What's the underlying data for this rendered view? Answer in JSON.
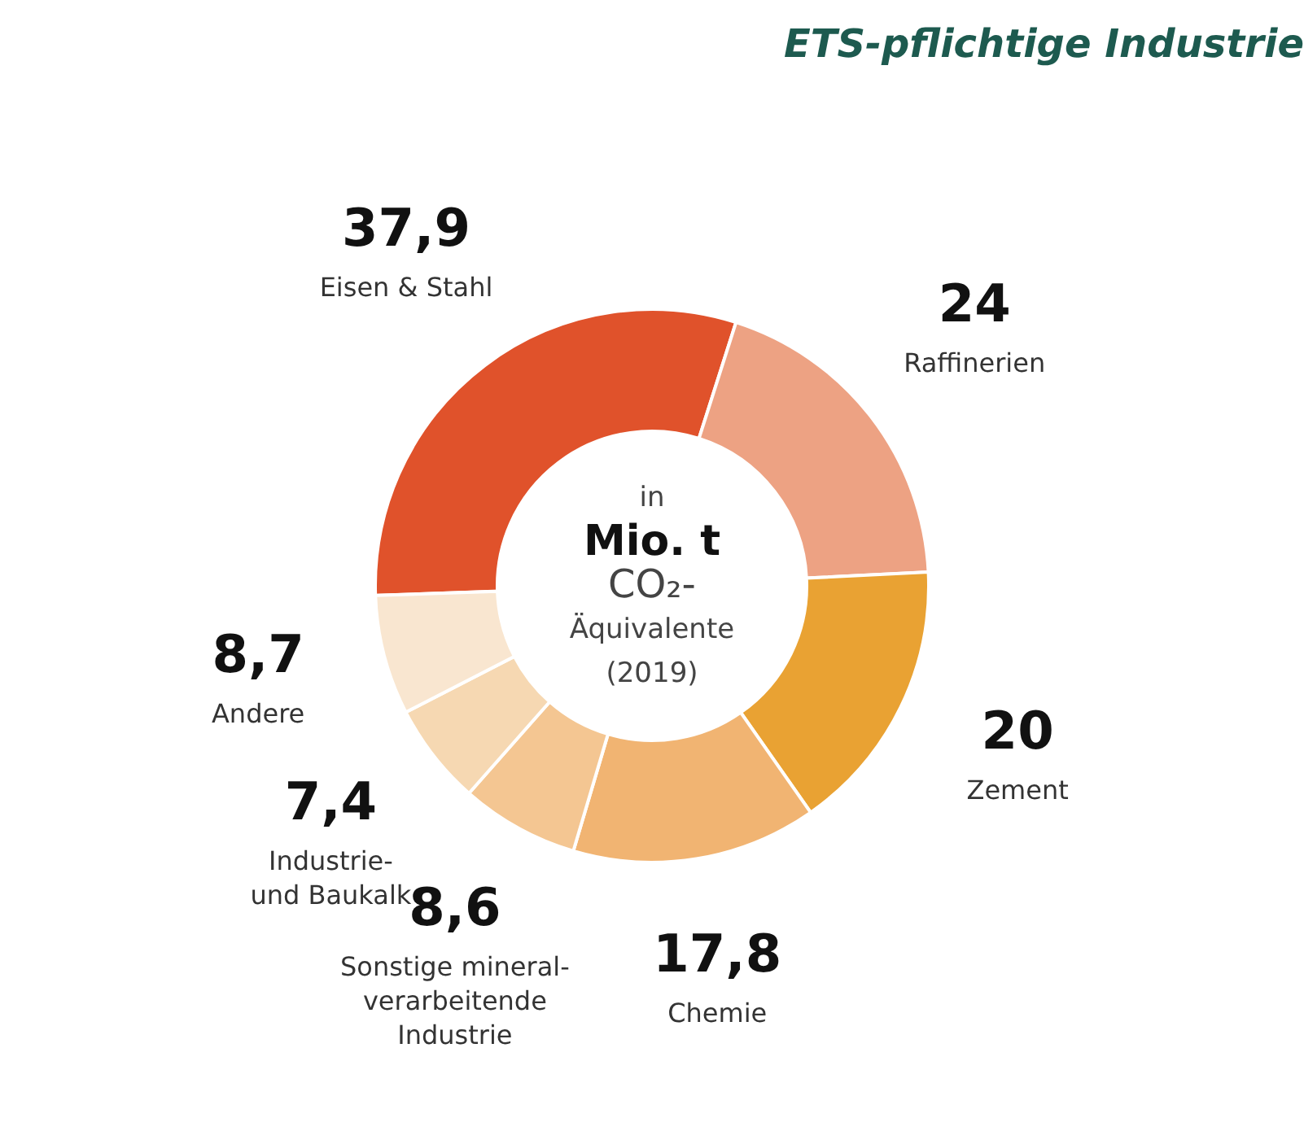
{
  "chart_data": {
    "type": "donut",
    "title": "ETS-pflichtige Industrie",
    "categories": [
      "Eisen & Stahl",
      "Raffinerien",
      "Zement",
      "Chemie",
      "Sonstige mineral-\nverarbeitende\nIndustrie",
      "Industrie-\nund Baukalk",
      "Andere"
    ],
    "values": [
      37.9,
      24,
      20,
      17.8,
      8.6,
      7.4,
      8.7
    ],
    "colors": [
      "#e0522b",
      "#eda283",
      "#e9a233",
      "#f1b472",
      "#f4c692",
      "#f6d8b2",
      "#f9e6d0"
    ],
    "value_labels": [
      "37,9",
      "24",
      "20",
      "17,8",
      "8,6",
      "7,4",
      "8,7"
    ],
    "annotations": [
      "in",
      "Mio. t",
      "CO₂-",
      "Äquivalente",
      "(2019)"
    ]
  }
}
